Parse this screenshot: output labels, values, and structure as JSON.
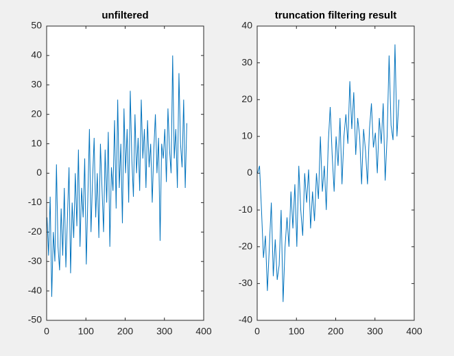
{
  "chart_data": [
    {
      "type": "line",
      "title": "unfiltered",
      "color": "#0072bd",
      "x": [
        1,
        5,
        9,
        13,
        17,
        21,
        25,
        29,
        33,
        37,
        41,
        45,
        49,
        53,
        57,
        61,
        65,
        69,
        73,
        77,
        81,
        85,
        89,
        93,
        97,
        101,
        105,
        109,
        113,
        117,
        121,
        125,
        129,
        133,
        137,
        141,
        145,
        149,
        153,
        157,
        161,
        165,
        169,
        173,
        177,
        181,
        185,
        189,
        193,
        197,
        201,
        205,
        209,
        213,
        217,
        221,
        225,
        229,
        233,
        237,
        241,
        245,
        249,
        253,
        257,
        261,
        265,
        269,
        273,
        277,
        281,
        285,
        289,
        293,
        297,
        301,
        305,
        309,
        313,
        317,
        321,
        325,
        329,
        333,
        337,
        341,
        345,
        349,
        353,
        357
      ],
      "values": [
        -15,
        -28,
        -8,
        -42,
        -20,
        -30,
        3,
        -25,
        -33,
        -12,
        -28,
        -5,
        -32,
        -15,
        2,
        -34,
        -10,
        -22,
        0,
        -18,
        8,
        -25,
        -5,
        -15,
        5,
        -31,
        -8,
        15,
        -20,
        -2,
        12,
        -15,
        0,
        -22,
        10,
        -5,
        -20,
        8,
        -10,
        14,
        -25,
        2,
        -6,
        18,
        -12,
        25,
        -5,
        10,
        -17,
        22,
        0,
        15,
        -10,
        28,
        5,
        -8,
        20,
        0,
        12,
        -6,
        25,
        5,
        15,
        -5,
        18,
        2,
        10,
        -10,
        8,
        20,
        0,
        12,
        -23,
        10,
        5,
        15,
        -3,
        22,
        8,
        0,
        40,
        5,
        15,
        -5,
        34,
        10,
        2,
        25,
        -5,
        17
      ],
      "xlim": [
        0,
        400
      ],
      "xticks": [
        0,
        100,
        200,
        300,
        400
      ],
      "ylim": [
        -50,
        50
      ],
      "yticks": [
        -50,
        -40,
        -30,
        -20,
        -10,
        0,
        10,
        20,
        30,
        40,
        50
      ]
    },
    {
      "type": "line",
      "title": "truncation filtering result",
      "color": "#0072bd",
      "x": [
        1,
        6,
        11,
        16,
        21,
        26,
        31,
        36,
        41,
        46,
        51,
        56,
        61,
        66,
        71,
        76,
        81,
        86,
        91,
        96,
        101,
        106,
        111,
        116,
        121,
        126,
        131,
        136,
        141,
        146,
        151,
        156,
        161,
        166,
        171,
        176,
        181,
        186,
        191,
        196,
        201,
        206,
        211,
        216,
        221,
        226,
        231,
        236,
        241,
        246,
        251,
        256,
        261,
        266,
        271,
        276,
        281,
        286,
        291,
        296,
        301,
        306,
        311,
        316,
        321,
        326,
        331,
        336,
        341,
        346,
        351,
        356,
        361
      ],
      "values": [
        0,
        2,
        -10,
        -23,
        -17,
        -32,
        -20,
        -8,
        -28,
        -18,
        -29,
        -25,
        -10,
        -35,
        -20,
        -12,
        -20,
        -5,
        -15,
        -3,
        -20,
        2,
        -10,
        -17,
        0,
        -8,
        1,
        -15,
        -5,
        -13,
        0,
        -7,
        10,
        -5,
        2,
        -10,
        8,
        18,
        5,
        -5,
        10,
        2,
        15,
        -3,
        10,
        16,
        8,
        25,
        12,
        22,
        5,
        15,
        10,
        -3,
        12,
        6,
        -3,
        12,
        19,
        7,
        11,
        0,
        15,
        8,
        19,
        -2,
        10,
        32,
        13,
        9,
        35,
        10,
        20
      ],
      "xlim": [
        0,
        400
      ],
      "xticks": [
        0,
        100,
        200,
        300,
        400
      ],
      "ylim": [
        -40,
        40
      ],
      "yticks": [
        -40,
        -30,
        -20,
        -10,
        0,
        10,
        20,
        30,
        40
      ]
    }
  ]
}
